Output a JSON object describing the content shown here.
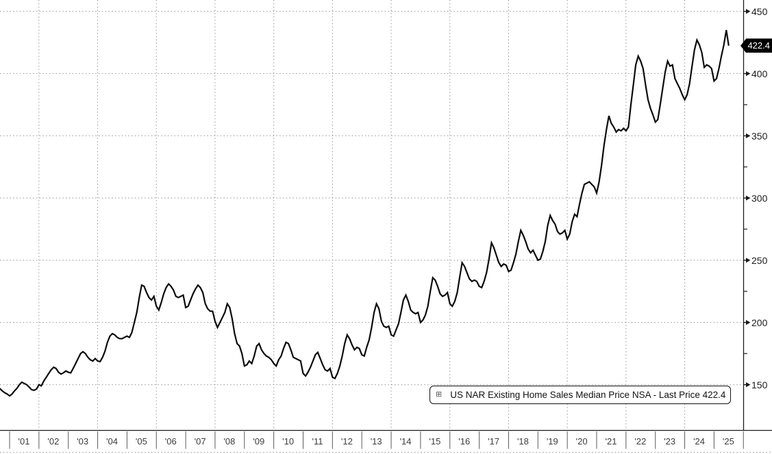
{
  "legend": {
    "expand_glyph": "⊞",
    "marker_color": "#000000",
    "label": "US NAR Existing Home Sales Median Price NSA - Last Price 422.4"
  },
  "tag": {
    "label": "422.4",
    "bg": "#000000",
    "fg": "#ffffff"
  },
  "colors": {
    "line": "#0a0a0a",
    "grid": "#9a9a9a",
    "axis": "#1a1a1a",
    "tick_text": "#1c1c1c",
    "year_text": "#3c3c3c"
  },
  "chart_data": {
    "type": "line",
    "title": "",
    "legend": [
      "US NAR Existing Home Sales Median Price NSA - Last Price 422.4"
    ],
    "legend_position": "bottom-right",
    "grid": "dotted",
    "x_tick_labels": [
      "'01",
      "'02",
      "'03",
      "'04",
      "'05",
      "'06",
      "'07",
      "'08",
      "'09",
      "'10",
      "'11",
      "'12",
      "'13",
      "'14",
      "'15",
      "'16",
      "'17",
      "'18",
      "'19",
      "'20",
      "'21",
      "'22",
      "'23",
      "'24",
      "'25"
    ],
    "y_ticks": [
      150,
      200,
      250,
      300,
      350,
      400,
      450
    ],
    "y_minor_step": 25,
    "ylim": [
      125,
      460
    ],
    "last_price": 422.4,
    "series": [
      {
        "name": "US NAR Existing Home Sales Median Price NSA",
        "color": "#000000",
        "start": "2000-09",
        "freq": "monthly",
        "values": [
          147,
          145,
          143.5,
          142.5,
          141,
          142.5,
          145,
          147,
          150,
          152,
          151,
          150,
          148,
          146,
          145.5,
          146.5,
          150,
          149,
          153,
          156,
          159,
          162,
          164,
          163,
          160,
          158.5,
          159.5,
          161,
          160,
          159.5,
          163,
          167,
          171,
          175,
          176.5,
          175,
          172,
          170,
          169,
          171,
          169,
          168.5,
          172,
          177,
          184,
          189,
          191,
          190,
          188,
          187,
          187,
          188,
          189,
          188,
          192,
          200,
          208,
          220,
          230,
          229,
          224,
          220,
          218,
          221,
          213,
          210,
          216,
          223,
          228,
          231,
          229,
          226,
          221,
          220,
          221,
          222,
          212,
          213,
          218,
          223,
          227,
          230,
          228,
          224,
          215,
          211,
          209,
          209,
          201,
          196,
          200,
          204,
          208,
          215,
          212,
          203,
          191,
          183,
          181,
          175,
          165,
          166,
          169,
          167,
          173,
          181,
          183,
          178,
          175,
          173,
          172,
          170,
          167,
          165,
          170,
          173,
          179,
          184,
          183,
          178,
          172,
          171,
          170,
          169,
          159,
          157,
          160,
          164,
          169,
          174,
          176,
          171,
          166,
          162,
          161,
          163,
          156,
          155,
          159,
          165,
          173,
          183,
          190,
          187,
          182,
          178,
          180,
          179,
          174,
          173,
          180,
          186,
          196,
          208,
          215,
          211,
          201,
          197,
          196,
          197,
          190,
          189,
          194,
          199,
          208,
          218,
          222,
          217,
          210,
          208,
          207,
          208,
          200,
          202,
          206,
          213,
          225,
          236,
          234,
          229,
          223,
          221,
          222,
          224,
          215,
          213,
          217,
          224,
          236,
          248,
          245,
          240,
          235,
          233,
          234,
          233,
          229,
          228,
          233,
          240,
          251,
          264,
          260,
          254,
          248,
          245,
          247,
          246,
          241,
          242,
          248,
          255,
          265,
          274,
          270,
          265,
          259,
          256,
          258,
          254,
          250,
          251,
          257,
          265,
          278,
          286,
          282,
          279,
          273,
          271,
          272,
          274,
          267,
          271,
          281,
          287,
          285,
          295,
          304,
          311,
          312,
          313,
          311,
          309,
          304,
          313,
          326,
          342,
          355,
          366,
          360,
          357,
          353,
          355,
          354,
          356,
          354,
          357,
          375,
          391,
          407,
          414,
          410,
          404,
          391,
          379,
          372,
          367,
          361,
          363,
          375,
          388,
          401,
          410,
          406,
          407,
          396,
          392,
          388,
          383,
          379,
          383,
          392,
          406,
          419,
          427,
          423,
          417,
          405,
          407,
          406,
          404,
          394,
          396,
          404,
          414,
          423,
          435,
          422.4
        ]
      }
    ]
  }
}
